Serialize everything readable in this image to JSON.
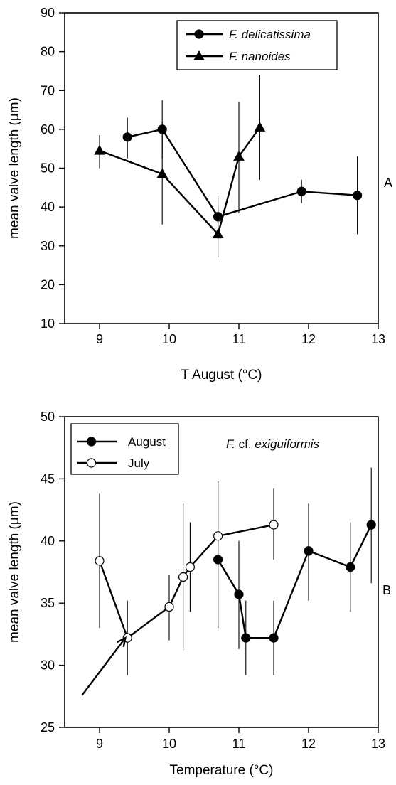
{
  "chart_data": [
    {
      "type": "line",
      "panel_label": "A",
      "xlabel": "T August (°C)",
      "ylabel": "mean valve length (µm)",
      "xlim": [
        8.5,
        13
      ],
      "ylim": [
        10,
        90
      ],
      "xticks": [
        9,
        10,
        11,
        12,
        13
      ],
      "yticks": [
        10,
        20,
        30,
        40,
        50,
        60,
        70,
        80,
        90
      ],
      "legend_position": "top-right",
      "series": [
        {
          "name": "F. delicatissima",
          "marker": "circle",
          "fill": "#000000",
          "points": [
            {
              "x": 9.4,
              "y": 58,
              "err_low": 52.5,
              "err_high": 63
            },
            {
              "x": 9.9,
              "y": 60,
              "err_low": 52.5,
              "err_high": 67.5
            },
            {
              "x": 10.7,
              "y": 37.5,
              "err_low": 33,
              "err_high": 43
            },
            {
              "x": 11.9,
              "y": 44,
              "err_low": 41,
              "err_high": 47
            },
            {
              "x": 12.7,
              "y": 43,
              "err_low": 33,
              "err_high": 53
            }
          ]
        },
        {
          "name": "F. nanoides",
          "marker": "triangle",
          "fill": "#000000",
          "points": [
            {
              "x": 9.0,
              "y": 54.5,
              "err_low": 50,
              "err_high": 58.5
            },
            {
              "x": 9.9,
              "y": 48.5,
              "err_low": 35.5,
              "err_high": 62
            },
            {
              "x": 10.7,
              "y": 33,
              "err_low": 27,
              "err_high": 40
            },
            {
              "x": 11.0,
              "y": 53,
              "err_low": 38.5,
              "err_high": 67
            },
            {
              "x": 11.3,
              "y": 60.5,
              "err_low": 47,
              "err_high": 74
            }
          ]
        }
      ]
    },
    {
      "type": "line",
      "panel_label": "B",
      "title": "F. cf. exiguiformis",
      "xlabel": "Temperature (°C)",
      "ylabel": "mean valve length (µm)",
      "xlim": [
        8.5,
        13
      ],
      "ylim": [
        25,
        50
      ],
      "xticks": [
        9,
        10,
        11,
        12,
        13
      ],
      "yticks": [
        25,
        30,
        35,
        40,
        45,
        50
      ],
      "legend_position": "top-left",
      "arrow": {
        "from": [
          8.75,
          27.6
        ],
        "to": [
          9.37,
          32.2
        ]
      },
      "series": [
        {
          "name": "August",
          "marker": "circle",
          "fill": "#000000",
          "points": [
            {
              "x": 10.7,
              "y": 38.5,
              "err_low": 33,
              "err_high": 44.8
            },
            {
              "x": 11.0,
              "y": 35.7,
              "err_low": 31.3,
              "err_high": 40
            },
            {
              "x": 11.1,
              "y": 32.2,
              "err_low": 29.2,
              "err_high": 35.2
            },
            {
              "x": 11.5,
              "y": 32.2,
              "err_low": 29.2,
              "err_high": 35.2
            },
            {
              "x": 12.0,
              "y": 39.2,
              "err_low": 35.2,
              "err_high": 43
            },
            {
              "x": 12.6,
              "y": 37.9,
              "err_low": 34.3,
              "err_high": 41.5
            },
            {
              "x": 12.9,
              "y": 41.3,
              "err_low": 36.6,
              "err_high": 45.9
            }
          ]
        },
        {
          "name": "July",
          "marker": "circle",
          "fill": "#ffffff",
          "points": [
            {
              "x": 9.0,
              "y": 38.4,
              "err_low": 33,
              "err_high": 43.8
            },
            {
              "x": 9.4,
              "y": 32.2,
              "err_low": 29.2,
              "err_high": 35.2
            },
            {
              "x": 10.0,
              "y": 34.7,
              "err_low": 32,
              "err_high": 37.3
            },
            {
              "x": 10.2,
              "y": 37.1,
              "err_low": 31.2,
              "err_high": 43
            },
            {
              "x": 10.3,
              "y": 37.9,
              "err_low": 34.3,
              "err_high": 41.5
            },
            {
              "x": 10.7,
              "y": 40.4,
              "err_low": 33,
              "err_high": 44.8
            },
            {
              "x": 11.5,
              "y": 41.3,
              "err_low": 38.5,
              "err_high": 44.2
            }
          ]
        }
      ]
    }
  ]
}
